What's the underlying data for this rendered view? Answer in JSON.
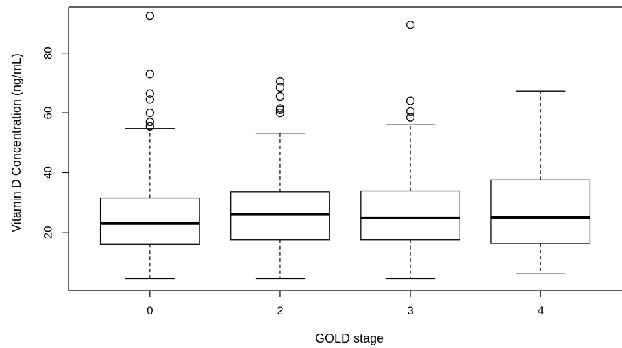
{
  "chart_data": {
    "type": "boxplot",
    "title": "",
    "xlabel": "GOLD stage",
    "ylabel": "Vitamin D Concentration (ng/mL)",
    "categories": [
      "0",
      "2",
      "3",
      "4"
    ],
    "yticks": [
      20,
      40,
      60,
      80
    ],
    "ylim": [
      0.5,
      95.5
    ],
    "boxes": [
      {
        "category": "0",
        "whisker_low": 4.5,
        "q1": 16.0,
        "median": 23.0,
        "q3": 31.5,
        "whisker_high": 54.8,
        "outliers": [
          55.5,
          57.0,
          60.0,
          64.5,
          66.5,
          73.0,
          92.5
        ]
      },
      {
        "category": "2",
        "whisker_low": 4.5,
        "q1": 17.5,
        "median": 26.0,
        "q3": 33.5,
        "whisker_high": 53.2,
        "outliers": [
          60.0,
          61.0,
          61.5,
          65.5,
          68.5,
          70.5
        ]
      },
      {
        "category": "3",
        "whisker_low": 4.5,
        "q1": 17.5,
        "median": 24.8,
        "q3": 33.8,
        "whisker_high": 56.2,
        "outliers": [
          58.5,
          60.5,
          64.0,
          89.5
        ]
      },
      {
        "category": "4",
        "whisker_low": 6.3,
        "q1": 16.3,
        "median": 25.0,
        "q3": 37.5,
        "whisker_high": 67.3,
        "outliers": []
      }
    ],
    "grid": false,
    "legend": "none"
  }
}
